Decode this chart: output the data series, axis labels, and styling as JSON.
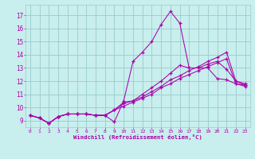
{
  "bg_color": "#c8eeed",
  "line_color": "#aa00aa",
  "grid_color": "#99cccc",
  "xlabel": "Windchill (Refroidissement éolien,°C)",
  "yticks": [
    9,
    10,
    11,
    12,
    13,
    14,
    15,
    16,
    17
  ],
  "xlim": [
    -0.5,
    23.5
  ],
  "ylim": [
    8.5,
    17.8
  ],
  "lines": [
    {
      "x": [
        0,
        1,
        2,
        3,
        4,
        5,
        6,
        7,
        8,
        9,
        10,
        11,
        12,
        13,
        14,
        15,
        16,
        17,
        18,
        19,
        20,
        21,
        22,
        23
      ],
      "y": [
        9.4,
        9.2,
        8.8,
        9.3,
        9.5,
        9.5,
        9.5,
        9.4,
        9.4,
        8.9,
        10.5,
        13.5,
        14.2,
        15.0,
        16.3,
        17.3,
        16.4,
        13.0,
        13.0,
        13.0,
        12.2,
        12.1,
        11.8,
        11.7
      ]
    },
    {
      "x": [
        0,
        1,
        2,
        3,
        4,
        5,
        6,
        7,
        8,
        9,
        10,
        11,
        12,
        13,
        14,
        15,
        16,
        17,
        18,
        19,
        20,
        21,
        22,
        23
      ],
      "y": [
        9.4,
        9.2,
        8.8,
        9.3,
        9.5,
        9.5,
        9.5,
        9.4,
        9.4,
        9.8,
        10.4,
        10.5,
        11.0,
        11.5,
        12.0,
        12.6,
        13.2,
        13.0,
        13.0,
        13.3,
        13.5,
        12.9,
        12.0,
        11.8
      ]
    },
    {
      "x": [
        0,
        1,
        2,
        3,
        4,
        5,
        6,
        7,
        8,
        9,
        10,
        11,
        12,
        13,
        14,
        15,
        16,
        17,
        18,
        19,
        20,
        21,
        22,
        23
      ],
      "y": [
        9.4,
        9.2,
        8.8,
        9.3,
        9.5,
        9.5,
        9.5,
        9.4,
        9.4,
        9.8,
        10.3,
        10.5,
        10.8,
        11.2,
        11.6,
        12.1,
        12.4,
        12.8,
        13.1,
        13.5,
        13.8,
        14.2,
        12.0,
        11.7
      ]
    },
    {
      "x": [
        0,
        1,
        2,
        3,
        4,
        5,
        6,
        7,
        8,
        9,
        10,
        11,
        12,
        13,
        14,
        15,
        16,
        17,
        18,
        19,
        20,
        21,
        22,
        23
      ],
      "y": [
        9.4,
        9.2,
        8.8,
        9.3,
        9.5,
        9.5,
        9.5,
        9.4,
        9.4,
        9.8,
        10.1,
        10.4,
        10.7,
        11.0,
        11.5,
        11.8,
        12.2,
        12.5,
        12.8,
        13.1,
        13.4,
        13.7,
        11.8,
        11.6
      ]
    }
  ]
}
